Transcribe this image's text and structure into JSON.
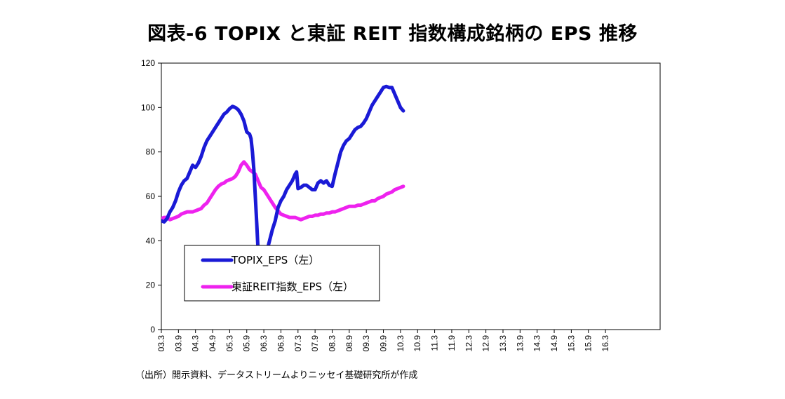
{
  "chart_data": {
    "type": "line",
    "title": "図表-6 TOPIX と東証 REIT 指数構成銘柄の EPS 推移",
    "source": "（出所）開示資料、データストリームよりニッセイ基礎研究所が作成",
    "ylim": [
      0,
      120
    ],
    "yticks": [
      0,
      20,
      40,
      60,
      80,
      100,
      120
    ],
    "xticks": [
      "03.3",
      "03.9",
      "04.3",
      "04.9",
      "05.3",
      "05.9",
      "06.3",
      "06.9",
      "07.3",
      "07.9",
      "08.3",
      "08.9",
      "09.3",
      "09.9",
      "10.3",
      "10.9",
      "11.3",
      "11.9",
      "12.3",
      "12.9",
      "13.3",
      "13.9",
      "14.3",
      "14.9",
      "15.3",
      "15.9",
      "16.3"
    ],
    "grid": false,
    "legend_position": "lower-left",
    "series": [
      {
        "name": "TOPIX_EPS（左）",
        "color": "#1a1ad6",
        "points": [
          [
            0,
            49
          ],
          [
            1,
            48.5
          ],
          [
            2,
            50
          ],
          [
            3,
            53
          ],
          [
            4,
            55
          ],
          [
            5,
            58
          ],
          [
            6,
            62
          ],
          [
            7,
            65
          ],
          [
            8,
            67
          ],
          [
            9,
            68
          ],
          [
            10,
            71
          ],
          [
            11,
            74
          ],
          [
            12,
            73
          ],
          [
            13,
            75
          ],
          [
            14,
            78
          ],
          [
            15,
            82
          ],
          [
            16,
            85
          ],
          [
            17,
            87
          ],
          [
            18,
            89
          ],
          [
            19,
            91
          ],
          [
            20,
            93
          ],
          [
            21,
            95
          ],
          [
            22,
            97
          ],
          [
            23,
            98
          ],
          [
            24,
            99.5
          ],
          [
            25,
            100.5
          ],
          [
            26,
            100
          ],
          [
            27,
            99
          ],
          [
            28,
            97
          ],
          [
            29,
            94
          ],
          [
            30,
            89
          ],
          [
            31,
            88
          ],
          [
            31.5,
            86
          ],
          [
            32,
            80
          ],
          [
            32.5,
            72
          ],
          [
            33,
            60
          ],
          [
            33.5,
            48
          ],
          [
            34,
            35
          ],
          [
            34.5,
            31
          ],
          [
            35,
            29
          ],
          [
            35.5,
            29
          ],
          [
            36,
            31
          ],
          [
            37,
            35
          ],
          [
            38,
            40
          ],
          [
            39,
            45
          ],
          [
            40,
            49
          ],
          [
            41,
            55
          ],
          [
            42,
            58
          ],
          [
            43,
            60
          ],
          [
            44,
            63
          ],
          [
            45,
            65
          ],
          [
            46,
            67
          ],
          [
            47,
            70
          ],
          [
            47.5,
            71
          ],
          [
            48,
            63.5
          ],
          [
            49,
            64
          ],
          [
            50,
            65
          ],
          [
            51,
            65
          ],
          [
            52,
            64
          ],
          [
            53,
            63
          ],
          [
            54,
            63
          ],
          [
            55,
            66
          ],
          [
            56,
            67
          ],
          [
            57,
            66
          ],
          [
            58,
            67
          ],
          [
            59,
            65
          ],
          [
            60,
            64.5
          ],
          [
            61,
            70
          ],
          [
            62,
            75
          ],
          [
            63,
            80
          ],
          [
            64,
            83
          ],
          [
            65,
            85
          ],
          [
            66,
            86
          ],
          [
            67,
            88
          ],
          [
            68,
            90
          ],
          [
            69,
            91
          ],
          [
            70,
            91.5
          ],
          [
            71,
            93
          ],
          [
            72,
            95
          ],
          [
            73,
            98
          ],
          [
            74,
            101
          ],
          [
            75,
            103
          ],
          [
            76,
            105
          ],
          [
            77,
            107
          ],
          [
            78,
            109
          ],
          [
            79,
            109.5
          ],
          [
            80,
            109
          ],
          [
            81,
            109
          ],
          [
            82,
            106
          ],
          [
            83,
            103
          ],
          [
            84,
            100
          ],
          [
            85,
            98.5
          ]
        ]
      },
      {
        "name": "東証REIT指数_EPS（左）",
        "color": "#ee22ee",
        "points": [
          [
            0,
            50
          ],
          [
            1,
            50.5
          ],
          [
            2,
            50.5
          ],
          [
            3,
            49.5
          ],
          [
            4,
            50
          ],
          [
            5,
            50.5
          ],
          [
            6,
            51
          ],
          [
            7,
            52
          ],
          [
            8,
            52.5
          ],
          [
            9,
            53
          ],
          [
            10,
            53
          ],
          [
            11,
            53
          ],
          [
            12,
            53.5
          ],
          [
            13,
            54
          ],
          [
            14,
            54.5
          ],
          [
            15,
            56
          ],
          [
            16,
            57
          ],
          [
            17,
            59
          ],
          [
            18,
            61
          ],
          [
            19,
            63
          ],
          [
            20,
            64.5
          ],
          [
            21,
            65.5
          ],
          [
            22,
            66
          ],
          [
            23,
            67
          ],
          [
            24,
            67.5
          ],
          [
            25,
            68
          ],
          [
            26,
            69
          ],
          [
            27,
            71
          ],
          [
            28,
            74
          ],
          [
            29,
            75.5
          ],
          [
            30,
            74
          ],
          [
            31,
            72
          ],
          [
            32,
            71
          ],
          [
            33,
            70
          ],
          [
            34,
            67
          ],
          [
            35,
            64
          ],
          [
            36,
            63
          ],
          [
            37,
            61
          ],
          [
            38,
            59
          ],
          [
            39,
            57
          ],
          [
            40,
            55
          ],
          [
            41,
            53.5
          ],
          [
            42,
            52
          ],
          [
            43,
            51.5
          ],
          [
            44,
            51
          ],
          [
            45,
            50.5
          ],
          [
            46,
            50.5
          ],
          [
            47,
            50.5
          ],
          [
            48,
            50
          ],
          [
            49,
            49.5
          ],
          [
            50,
            50
          ],
          [
            51,
            50.5
          ],
          [
            52,
            51
          ],
          [
            53,
            51
          ],
          [
            54,
            51.5
          ],
          [
            55,
            51.5
          ],
          [
            56,
            52
          ],
          [
            57,
            52
          ],
          [
            58,
            52.5
          ],
          [
            59,
            52.5
          ],
          [
            60,
            53
          ],
          [
            61,
            53
          ],
          [
            62,
            53.5
          ],
          [
            63,
            54
          ],
          [
            64,
            54.5
          ],
          [
            65,
            55
          ],
          [
            66,
            55.5
          ],
          [
            67,
            55.5
          ],
          [
            68,
            55.5
          ],
          [
            69,
            56
          ],
          [
            70,
            56
          ],
          [
            71,
            56.5
          ],
          [
            72,
            57
          ],
          [
            73,
            57.5
          ],
          [
            74,
            58
          ],
          [
            75,
            58
          ],
          [
            76,
            59
          ],
          [
            77,
            59.5
          ],
          [
            78,
            60
          ],
          [
            79,
            61
          ],
          [
            80,
            61.5
          ],
          [
            81,
            62
          ],
          [
            82,
            63
          ],
          [
            83,
            63.5
          ],
          [
            84,
            64
          ],
          [
            85,
            64.5
          ]
        ]
      }
    ]
  }
}
